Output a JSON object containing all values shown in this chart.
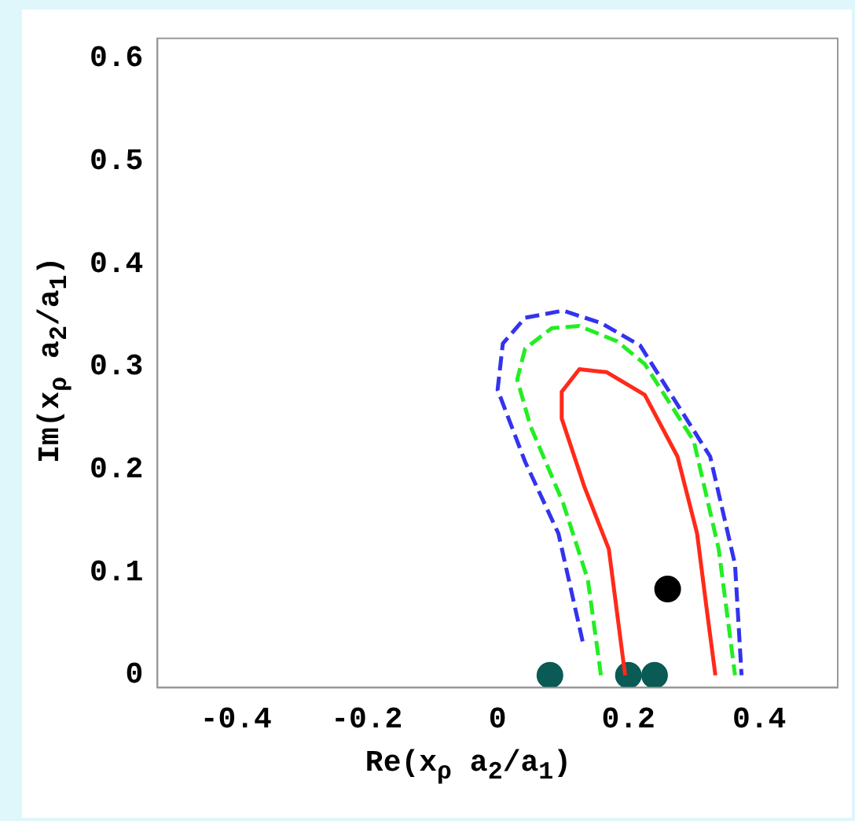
{
  "chart_data": {
    "type": "line",
    "xlabel": "Re(x$_{ρ}$ a$_{2}$/a$_{1}$)",
    "ylabel": "Im(x$_{ρ}$ a$_{2}$/a$_{1}$)",
    "xlim": [
      -0.52,
      0.52
    ],
    "ylim": [
      -0.012,
      0.62
    ],
    "xticks": [
      -0.4,
      -0.2,
      0,
      0.2,
      0.4
    ],
    "yticks": [
      0,
      0.1,
      0.2,
      0.3,
      0.4,
      0.5,
      0.6
    ],
    "grid": false,
    "legend": false,
    "series": [
      {
        "type": "line",
        "color": "#ff2a1a",
        "line_style": "solid",
        "marker": "none",
        "x": [
          0.195,
          0.17,
          0.133,
          0.098,
          0.098,
          0.125,
          0.167,
          0.225,
          0.275,
          0.305,
          0.32,
          0.333
        ],
        "values": [
          0,
          0.123,
          0.183,
          0.25,
          0.276,
          0.298,
          0.295,
          0.273,
          0.213,
          0.138,
          0.063,
          0
        ]
      },
      {
        "type": "line",
        "color": "#22ee22",
        "line_style": "dashed",
        "marker": "none",
        "x": [
          0.158,
          0.138,
          0.1,
          0.05,
          0.03,
          0.042,
          0.083,
          0.125,
          0.183,
          0.225,
          0.3,
          0.338,
          0.363
        ],
        "values": [
          0,
          0.093,
          0.168,
          0.243,
          0.288,
          0.318,
          0.338,
          0.34,
          0.325,
          0.303,
          0.228,
          0.123,
          0
        ]
      },
      {
        "type": "line",
        "color": "#3333ee",
        "line_style": "dashed",
        "marker": "none",
        "x": [
          0.13,
          0.093,
          0.042,
          0,
          0.008,
          0.042,
          0.1,
          0.158,
          0.218,
          0.325,
          0.363,
          0.373
        ],
        "values": [
          0.033,
          0.138,
          0.208,
          0.278,
          0.323,
          0.348,
          0.355,
          0.343,
          0.321,
          0.213,
          0.108,
          0
        ]
      },
      {
        "type": "scatter",
        "color": "#0a5a55",
        "marker": "circle",
        "x": [
          0.08,
          0.2,
          0.24
        ],
        "values": [
          0,
          0,
          0
        ]
      },
      {
        "type": "scatter",
        "color": "#000000",
        "marker": "circle",
        "x": [
          0.26
        ],
        "values": [
          0.084
        ]
      }
    ]
  }
}
